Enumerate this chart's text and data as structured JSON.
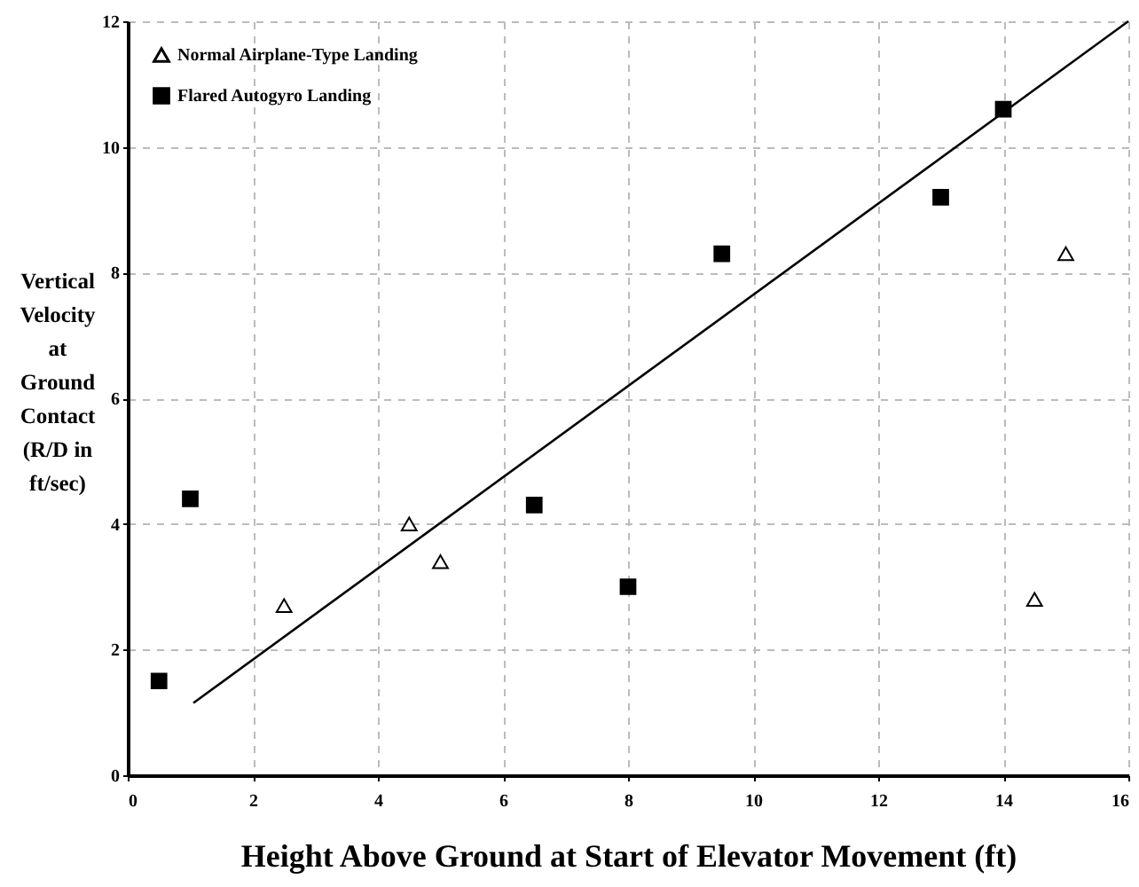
{
  "chart_data": {
    "type": "scatter",
    "xlabel": "Height Above Ground at Start of Elevator Movement (ft)",
    "ylabel": "Vertical\nVelocity\nat\nGround\nContact\n\n(R/D in\nft/sec)",
    "xlim": [
      0,
      16
    ],
    "xticks": [
      0,
      2,
      4,
      6,
      8,
      10,
      12,
      14,
      16
    ],
    "ylim": [
      0,
      12
    ],
    "yticks": [
      0,
      2,
      4,
      6,
      8,
      10,
      12
    ],
    "grid": true,
    "legend": "top left",
    "series": [
      {
        "name": "Normal Airplane-Type Landing",
        "color": "#000000",
        "marker": "triangle",
        "x": [
          2.5,
          4.5,
          5,
          14.5,
          15
        ],
        "values": [
          2.7,
          4.0,
          3.4,
          2.8,
          8.3
        ]
      },
      {
        "name": "Flared Autogyro Landing",
        "color": "#000000",
        "marker": "square",
        "x": [
          0.5,
          1,
          6.5,
          8,
          9.5,
          13,
          14
        ],
        "values": [
          1.5,
          4.4,
          4.3,
          3.0,
          8.3,
          9.2,
          10.6
        ]
      },
      {
        "type": "line",
        "color": "#000000",
        "x": [
          1.05,
          16
        ],
        "values": [
          1.15,
          12
        ]
      }
    ]
  }
}
